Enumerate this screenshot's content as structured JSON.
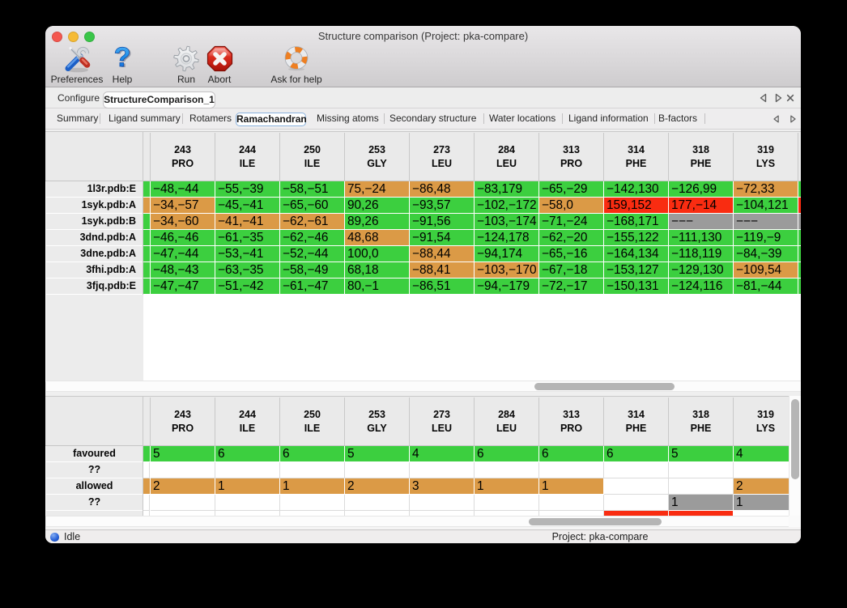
{
  "window": {
    "title": "Structure comparison (Project: pka-compare)",
    "traffic_lights": {
      "close": "#F4574F",
      "minimize": "#F6BB36",
      "zoom": "#3AC649"
    }
  },
  "toolbar": {
    "items": [
      {
        "label": "Preferences",
        "icon": "tools-icon"
      },
      {
        "label": "Help",
        "icon": "question-mark-icon"
      },
      {
        "label": "Run",
        "icon": "gear-icon"
      },
      {
        "label": "Abort",
        "icon": "abort-octagon-icon"
      },
      {
        "label": "Ask for help",
        "icon": "lifebuoy-icon"
      }
    ]
  },
  "main_tabs": {
    "tabs": [
      {
        "label": "Configure",
        "active": false
      },
      {
        "label": "StructureComparison_1",
        "active": true
      }
    ],
    "controls": [
      "previous-tab",
      "next-tab",
      "close-tab"
    ]
  },
  "sub_tabs": {
    "active": "Ramachandran",
    "tabs": [
      {
        "label": "Summary"
      },
      {
        "label": "Ligand summary"
      },
      {
        "label": "Rotamers"
      },
      {
        "label": "Ramachandran"
      },
      {
        "label": "Missing atoms"
      },
      {
        "label": "Secondary structure"
      },
      {
        "label": "Water locations"
      },
      {
        "label": "Ligand information"
      },
      {
        "label": "B-factors"
      }
    ]
  },
  "status_colors": {
    "favoured": "#3CCF3F",
    "allowed": "#DB9A46",
    "outlier": "#F92C11",
    "missing": "#9B9B9B"
  },
  "chart_data": {
    "type": "table",
    "title": "Ramachandran phi,psi angles per residue",
    "columns": [
      {
        "residue_number": "243",
        "residue_name": "PRO"
      },
      {
        "residue_number": "244",
        "residue_name": "ILE"
      },
      {
        "residue_number": "250",
        "residue_name": "ILE"
      },
      {
        "residue_number": "253",
        "residue_name": "GLY"
      },
      {
        "residue_number": "273",
        "residue_name": "LEU"
      },
      {
        "residue_number": "284",
        "residue_name": "LEU"
      },
      {
        "residue_number": "313",
        "residue_name": "PRO"
      },
      {
        "residue_number": "314",
        "residue_name": "PHE"
      },
      {
        "residue_number": "318",
        "residue_name": "PHE"
      },
      {
        "residue_number": "319",
        "residue_name": "LYS"
      }
    ],
    "rows": [
      {
        "label": "1l3r.pdb:E",
        "partial_left": "favoured",
        "partial_right": "favoured",
        "cells": [
          {
            "text": "-48,-44",
            "status": "favoured"
          },
          {
            "text": "-55,-39",
            "status": "favoured"
          },
          {
            "text": "-58,-51",
            "status": "favoured"
          },
          {
            "text": "75,-24",
            "status": "allowed"
          },
          {
            "text": "-86,48",
            "status": "allowed"
          },
          {
            "text": "-83,179",
            "status": "favoured"
          },
          {
            "text": "-65,-29",
            "status": "favoured"
          },
          {
            "text": "-142,130",
            "status": "favoured"
          },
          {
            "text": "-126,99",
            "status": "favoured"
          },
          {
            "text": "-72,33",
            "status": "allowed"
          }
        ]
      },
      {
        "label": "1syk.pdb:A",
        "partial_left": "allowed",
        "partial_right": "outlier",
        "cells": [
          {
            "text": "-34,-57",
            "status": "allowed"
          },
          {
            "text": "-45,-41",
            "status": "favoured"
          },
          {
            "text": "-65,-60",
            "status": "favoured"
          },
          {
            "text": "90,26",
            "status": "favoured"
          },
          {
            "text": "-93,57",
            "status": "favoured"
          },
          {
            "text": "-102,-172",
            "status": "favoured"
          },
          {
            "text": "-58,0",
            "status": "allowed"
          },
          {
            "text": "159,152",
            "status": "outlier"
          },
          {
            "text": "177,-14",
            "status": "outlier"
          },
          {
            "text": "-104,121",
            "status": "favoured"
          }
        ]
      },
      {
        "label": "1syk.pdb:B",
        "partial_left": "favoured",
        "partial_right": "missing",
        "cells": [
          {
            "text": "-34,-60",
            "status": "allowed"
          },
          {
            "text": "-41,-41",
            "status": "allowed"
          },
          {
            "text": "-62,-61",
            "status": "allowed"
          },
          {
            "text": "89,26",
            "status": "favoured"
          },
          {
            "text": "-91,56",
            "status": "favoured"
          },
          {
            "text": "-103,-174",
            "status": "favoured"
          },
          {
            "text": "-71,-24",
            "status": "favoured"
          },
          {
            "text": "-168,171",
            "status": "favoured"
          },
          {
            "text": "---",
            "status": "missing"
          },
          {
            "text": "---",
            "status": "missing"
          }
        ]
      },
      {
        "label": "3dnd.pdb:A",
        "partial_left": "favoured",
        "partial_right": "favoured",
        "cells": [
          {
            "text": "-46,-46",
            "status": "favoured"
          },
          {
            "text": "-61,-35",
            "status": "favoured"
          },
          {
            "text": "-62,-46",
            "status": "favoured"
          },
          {
            "text": "48,68",
            "status": "allowed"
          },
          {
            "text": "-91,54",
            "status": "favoured"
          },
          {
            "text": "-124,178",
            "status": "favoured"
          },
          {
            "text": "-62,-20",
            "status": "favoured"
          },
          {
            "text": "-155,122",
            "status": "favoured"
          },
          {
            "text": "-111,130",
            "status": "favoured"
          },
          {
            "text": "-119,-9",
            "status": "favoured"
          }
        ]
      },
      {
        "label": "3dne.pdb:A",
        "partial_left": "favoured",
        "partial_right": "favoured",
        "cells": [
          {
            "text": "-47,-44",
            "status": "favoured"
          },
          {
            "text": "-53,-41",
            "status": "favoured"
          },
          {
            "text": "-52,-44",
            "status": "favoured"
          },
          {
            "text": "100,0",
            "status": "favoured"
          },
          {
            "text": "-88,44",
            "status": "allowed"
          },
          {
            "text": "-94,174",
            "status": "favoured"
          },
          {
            "text": "-65,-16",
            "status": "favoured"
          },
          {
            "text": "-164,134",
            "status": "favoured"
          },
          {
            "text": "-118,119",
            "status": "favoured"
          },
          {
            "text": "-84,-39",
            "status": "favoured"
          }
        ]
      },
      {
        "label": "3fhi.pdb:A",
        "partial_left": "favoured",
        "partial_right": "favoured",
        "cells": [
          {
            "text": "-48,-43",
            "status": "favoured"
          },
          {
            "text": "-63,-35",
            "status": "favoured"
          },
          {
            "text": "-58,-49",
            "status": "favoured"
          },
          {
            "text": "68,18",
            "status": "favoured"
          },
          {
            "text": "-88,41",
            "status": "allowed"
          },
          {
            "text": "-103,-170",
            "status": "allowed"
          },
          {
            "text": "-67,-18",
            "status": "favoured"
          },
          {
            "text": "-153,127",
            "status": "favoured"
          },
          {
            "text": "-129,130",
            "status": "favoured"
          },
          {
            "text": "-109,54",
            "status": "allowed"
          }
        ]
      },
      {
        "label": "3fjq.pdb:E",
        "partial_left": "favoured",
        "partial_right": "favoured",
        "cells": [
          {
            "text": "-47,-47",
            "status": "favoured"
          },
          {
            "text": "-51,-42",
            "status": "favoured"
          },
          {
            "text": "-61,-47",
            "status": "favoured"
          },
          {
            "text": "80,-1",
            "status": "favoured"
          },
          {
            "text": "-86,51",
            "status": "favoured"
          },
          {
            "text": "-94,-179",
            "status": "favoured"
          },
          {
            "text": "-72,-17",
            "status": "favoured"
          },
          {
            "text": "-150,131",
            "status": "favoured"
          },
          {
            "text": "-124,116",
            "status": "favoured"
          },
          {
            "text": "-81,-44",
            "status": "favoured"
          }
        ]
      }
    ],
    "summary_rows": [
      {
        "label": "favoured",
        "partial_left": "favoured",
        "cells": [
          {
            "text": "5",
            "status": "favoured"
          },
          {
            "text": "6",
            "status": "favoured"
          },
          {
            "text": "6",
            "status": "favoured"
          },
          {
            "text": "5",
            "status": "favoured"
          },
          {
            "text": "4",
            "status": "favoured"
          },
          {
            "text": "6",
            "status": "favoured"
          },
          {
            "text": "6",
            "status": "favoured"
          },
          {
            "text": "6",
            "status": "favoured"
          },
          {
            "text": "5",
            "status": "favoured"
          },
          {
            "text": "4",
            "status": "favoured"
          }
        ]
      },
      {
        "label": "??",
        "partial_left": null,
        "cells": [
          null,
          null,
          null,
          null,
          null,
          null,
          null,
          null,
          null,
          null
        ]
      },
      {
        "label": "allowed",
        "partial_left": "allowed",
        "cells": [
          {
            "text": "2",
            "status": "allowed"
          },
          {
            "text": "1",
            "status": "allowed"
          },
          {
            "text": "1",
            "status": "allowed"
          },
          {
            "text": "2",
            "status": "allowed"
          },
          {
            "text": "3",
            "status": "allowed"
          },
          {
            "text": "1",
            "status": "allowed"
          },
          {
            "text": "1",
            "status": "allowed"
          },
          null,
          null,
          {
            "text": "2",
            "status": "allowed"
          }
        ]
      },
      {
        "label": "??",
        "partial_left": null,
        "cells": [
          null,
          null,
          null,
          null,
          null,
          null,
          null,
          null,
          {
            "text": "1",
            "status": "missing"
          },
          {
            "text": "1",
            "status": "missing"
          }
        ]
      },
      {
        "label": "",
        "partial_left": null,
        "partial_row": true,
        "cells": [
          null,
          null,
          null,
          null,
          null,
          null,
          null,
          {
            "text": "",
            "status": "outlier"
          },
          {
            "text": "",
            "status": "outlier"
          },
          null
        ]
      }
    ]
  },
  "status_bar": {
    "state_icon": "blue-ball-icon",
    "state_label": "Idle",
    "project_label": "Project: pka-compare"
  }
}
